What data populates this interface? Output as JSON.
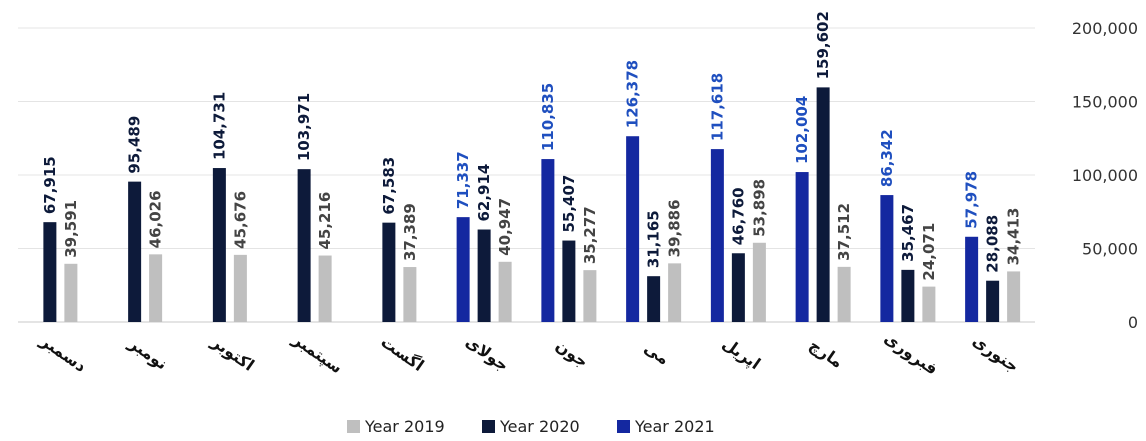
{
  "chart_data": {
    "type": "bar",
    "categories": [
      "جنوری",
      "فبروری",
      "مارچ",
      "اپریل",
      "می",
      "جون",
      "جولای",
      "اگست",
      "سپتمبر",
      "اکتوبر",
      "نومبر",
      "دسمبر"
    ],
    "series": [
      {
        "name": "Year 2019",
        "color": "#bfbfbf",
        "values": [
          34413,
          24071,
          37512,
          53898,
          39886,
          35277,
          40947,
          37389,
          45216,
          45676,
          46026,
          39591
        ]
      },
      {
        "name": "Year 2020",
        "color": "#0d1a3a",
        "values": [
          28088,
          35467,
          159602,
          46760,
          31165,
          55407,
          62914,
          67583,
          103971,
          104731,
          95489,
          67915
        ]
      },
      {
        "name": "Year 2021",
        "color": "#1428a0",
        "values": [
          57978,
          86342,
          102004,
          117618,
          126378,
          110835,
          71337,
          null,
          null,
          null,
          null,
          null
        ]
      }
    ],
    "data_labels": [
      [
        "34,413",
        "24,071",
        "37,512",
        "53,898",
        "39,886",
        "35,277",
        "40,947",
        "37,389",
        "45,216",
        "45,676",
        "46,026",
        "39,591"
      ],
      [
        "28,088",
        "35,467",
        "159,602",
        "46,760",
        "31,165",
        "55,407",
        "62,914",
        "67,583",
        "103,971",
        "104,731",
        "95,489",
        "67,915"
      ],
      [
        "57,978",
        "86,342",
        "102,004",
        "117,618",
        "126,378",
        "110,835",
        "71,337",
        "",
        "",
        "",
        "",
        ""
      ]
    ],
    "label_colors": [
      "#444444",
      "#0d1a3a",
      "#1f4fbf"
    ],
    "yticks": [
      "0",
      "50,000",
      "100,000",
      "150,000",
      "200,000"
    ],
    "ylim": [
      0,
      200000
    ],
    "y_axis_side": "right",
    "category_order": "right-to-left",
    "legend_position": "bottom",
    "grid": true
  }
}
